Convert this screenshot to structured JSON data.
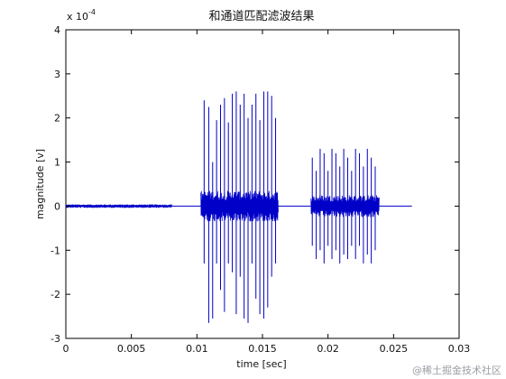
{
  "chart_data": {
    "type": "line",
    "title": "和通道匹配滤波结果",
    "xlabel": "time [sec]",
    "ylabel": "magnitude [v]",
    "y_exponent_label": "x 10",
    "y_exponent_power": "-4",
    "xlim": [
      0,
      0.03
    ],
    "ylim": [
      -3,
      4
    ],
    "x_ticks": [
      "0",
      "0.005",
      "0.01",
      "0.015",
      "0.02",
      "0.025",
      "0.03"
    ],
    "y_ticks": [
      "-3",
      "-2",
      "-1",
      "0",
      "1",
      "2",
      "3",
      "4"
    ],
    "grid": false,
    "line_color": "#0000c8",
    "series": [
      {
        "x": [
          0,
          0.0025,
          0.005,
          0.0075,
          0.0103,
          0.0135,
          0.016,
          0.0183,
          0.0203,
          0.0223,
          0.0243,
          0.0263
        ],
        "y": [
          0,
          0,
          0,
          0,
          0,
          0,
          0,
          0,
          0,
          0,
          0,
          0
        ]
      }
    ],
    "segments": [
      {
        "x_start": 0,
        "x_end": 0.0081,
        "amp": 0.04,
        "kind": "noise"
      },
      {
        "x_start": 0.0103,
        "x_end": 0.0162,
        "amp": 0.35,
        "kind": "base"
      },
      {
        "x_start": 0.0187,
        "x_end": 0.0239,
        "amp": 0.25,
        "kind": "base"
      }
    ],
    "spikes_burst1": [
      {
        "x": 0.01055,
        "top": 2.4,
        "bot": -1.3
      },
      {
        "x": 0.0109,
        "top": 2.25,
        "bot": -2.65
      },
      {
        "x": 0.0112,
        "top": 1.0,
        "bot": -2.55
      },
      {
        "x": 0.0115,
        "top": 1.95,
        "bot": -1.3
      },
      {
        "x": 0.0118,
        "top": 2.3,
        "bot": -1.9
      },
      {
        "x": 0.0121,
        "top": 2.45,
        "bot": -2.4
      },
      {
        "x": 0.0124,
        "top": 1.9,
        "bot": -1.3
      },
      {
        "x": 0.0127,
        "top": 2.55,
        "bot": -1.5
      },
      {
        "x": 0.013,
        "top": 2.6,
        "bot": -2.45
      },
      {
        "x": 0.0133,
        "top": 2.3,
        "bot": -1.6
      },
      {
        "x": 0.0136,
        "top": 2.55,
        "bot": -2.55
      },
      {
        "x": 0.0139,
        "top": 2.0,
        "bot": -2.65
      },
      {
        "x": 0.0142,
        "top": 2.3,
        "bot": -1.3
      },
      {
        "x": 0.0145,
        "top": 2.55,
        "bot": -2.1
      },
      {
        "x": 0.0148,
        "top": 1.95,
        "bot": -2.45
      },
      {
        "x": 0.0151,
        "top": 2.6,
        "bot": -2.55
      },
      {
        "x": 0.0154,
        "top": 2.6,
        "bot": -2.3
      },
      {
        "x": 0.0157,
        "top": 2.5,
        "bot": -1.6
      },
      {
        "x": 0.016,
        "top": 2.0,
        "bot": -1.3
      }
    ],
    "spikes_burst2": [
      {
        "x": 0.0188,
        "top": 1.1,
        "bot": -0.9
      },
      {
        "x": 0.0191,
        "top": 0.8,
        "bot": -1.2
      },
      {
        "x": 0.0194,
        "top": 1.3,
        "bot": -1.0
      },
      {
        "x": 0.0197,
        "top": 1.2,
        "bot": -1.3
      },
      {
        "x": 0.02,
        "top": 0.8,
        "bot": -0.9
      },
      {
        "x": 0.0203,
        "top": 1.3,
        "bot": -1.2
      },
      {
        "x": 0.0206,
        "top": 1.2,
        "bot": -1.0
      },
      {
        "x": 0.0209,
        "top": 0.9,
        "bot": -1.3
      },
      {
        "x": 0.0212,
        "top": 1.3,
        "bot": -1.1
      },
      {
        "x": 0.0215,
        "top": 1.1,
        "bot": -1.2
      },
      {
        "x": 0.0218,
        "top": 0.8,
        "bot": -0.9
      },
      {
        "x": 0.0221,
        "top": 1.3,
        "bot": -1.2
      },
      {
        "x": 0.0224,
        "top": 1.2,
        "bot": -0.9
      },
      {
        "x": 0.0227,
        "top": 0.9,
        "bot": -1.3
      },
      {
        "x": 0.023,
        "top": 1.3,
        "bot": -1.1
      },
      {
        "x": 0.0233,
        "top": 1.1,
        "bot": -1.3
      },
      {
        "x": 0.0236,
        "top": 0.9,
        "bot": -1.0
      }
    ],
    "zero_line_extent": [
      0.0,
      0.0264
    ]
  },
  "watermark": "@稀土掘金技术社区"
}
